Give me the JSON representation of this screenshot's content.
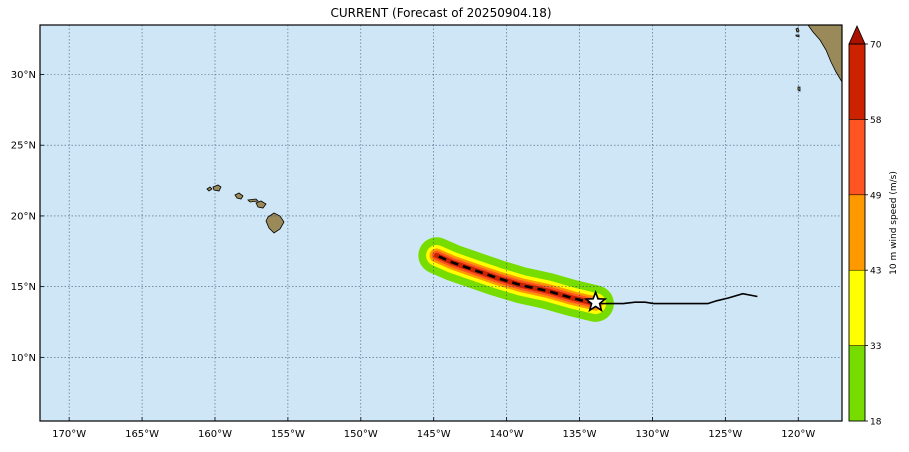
{
  "title": "CURRENT (Forecast of 20250904.18)",
  "map": {
    "extent": {
      "lon_min": -172,
      "lon_max": -117,
      "lat_min": 5.5,
      "lat_max": 33.5
    },
    "lon_ticks": [
      {
        "value": -170,
        "label": "170°W"
      },
      {
        "value": -165,
        "label": "165°W"
      },
      {
        "value": -160,
        "label": "160°W"
      },
      {
        "value": -155,
        "label": "155°W"
      },
      {
        "value": -150,
        "label": "150°W"
      },
      {
        "value": -145,
        "label": "145°W"
      },
      {
        "value": -140,
        "label": "140°W"
      },
      {
        "value": -135,
        "label": "135°W"
      },
      {
        "value": -130,
        "label": "130°W"
      },
      {
        "value": -125,
        "label": "125°W"
      },
      {
        "value": -120,
        "label": "120°W"
      }
    ],
    "lat_ticks": [
      {
        "value": 10,
        "label": "10°N"
      },
      {
        "value": 15,
        "label": "15°N"
      },
      {
        "value": 20,
        "label": "20°N"
      },
      {
        "value": 25,
        "label": "25°N"
      },
      {
        "value": 30,
        "label": "30°N"
      }
    ],
    "colors": {
      "ocean": "#cfe6f6",
      "land": "#9a8a5a",
      "gridline": "#1a3a5a",
      "track_past": "#000000",
      "track_forecast": "#000000",
      "storm_marker": "#ffffff"
    },
    "past_track": [
      [
        -122.8,
        14.3
      ],
      [
        -123.8,
        14.5
      ],
      [
        -124.8,
        14.2
      ],
      [
        -125.6,
        14.0
      ],
      [
        -126.2,
        13.8
      ],
      [
        -127.5,
        13.8
      ],
      [
        -128.8,
        13.8
      ],
      [
        -129.9,
        13.8
      ],
      [
        -130.5,
        13.9
      ],
      [
        -131.2,
        13.9
      ],
      [
        -132.0,
        13.8
      ],
      [
        -133.0,
        13.8
      ],
      [
        -133.9,
        13.8
      ]
    ],
    "forecast_track": [
      [
        -133.9,
        13.8
      ],
      [
        -135.5,
        14.2
      ],
      [
        -137.2,
        14.7
      ],
      [
        -139.0,
        15.1
      ],
      [
        -140.6,
        15.6
      ],
      [
        -142.3,
        16.2
      ],
      [
        -143.7,
        16.7
      ],
      [
        -144.8,
        17.2
      ]
    ],
    "storm_position": {
      "lon": -133.9,
      "lat": 13.9
    },
    "wind_swath": [
      {
        "threshold": 18,
        "half_width": 1.25,
        "color": "#77dd00"
      },
      {
        "threshold": 33,
        "half_width": 0.72,
        "color": "#ffff00"
      },
      {
        "threshold": 43,
        "half_width": 0.48,
        "color": "#ff9900"
      },
      {
        "threshold": 49,
        "half_width": 0.32,
        "color": "#ff5522"
      },
      {
        "threshold": 58,
        "half_width": 0.18,
        "color": "#cc2200"
      }
    ]
  },
  "colorbar": {
    "label": "10 m wind speed (m/s)",
    "bins": [
      {
        "from": 18,
        "to": 33,
        "color": "#77dd00"
      },
      {
        "from": 33,
        "to": 43,
        "color": "#ffff00"
      },
      {
        "from": 43,
        "to": 49,
        "color": "#ff9900"
      },
      {
        "from": 49,
        "to": 58,
        "color": "#ff5522"
      },
      {
        "from": 58,
        "to": 70,
        "color": "#cc2200"
      }
    ],
    "extend_color": "#aa1100",
    "tick_labels": [
      "18",
      "33",
      "43",
      "49",
      "58",
      "70"
    ]
  }
}
